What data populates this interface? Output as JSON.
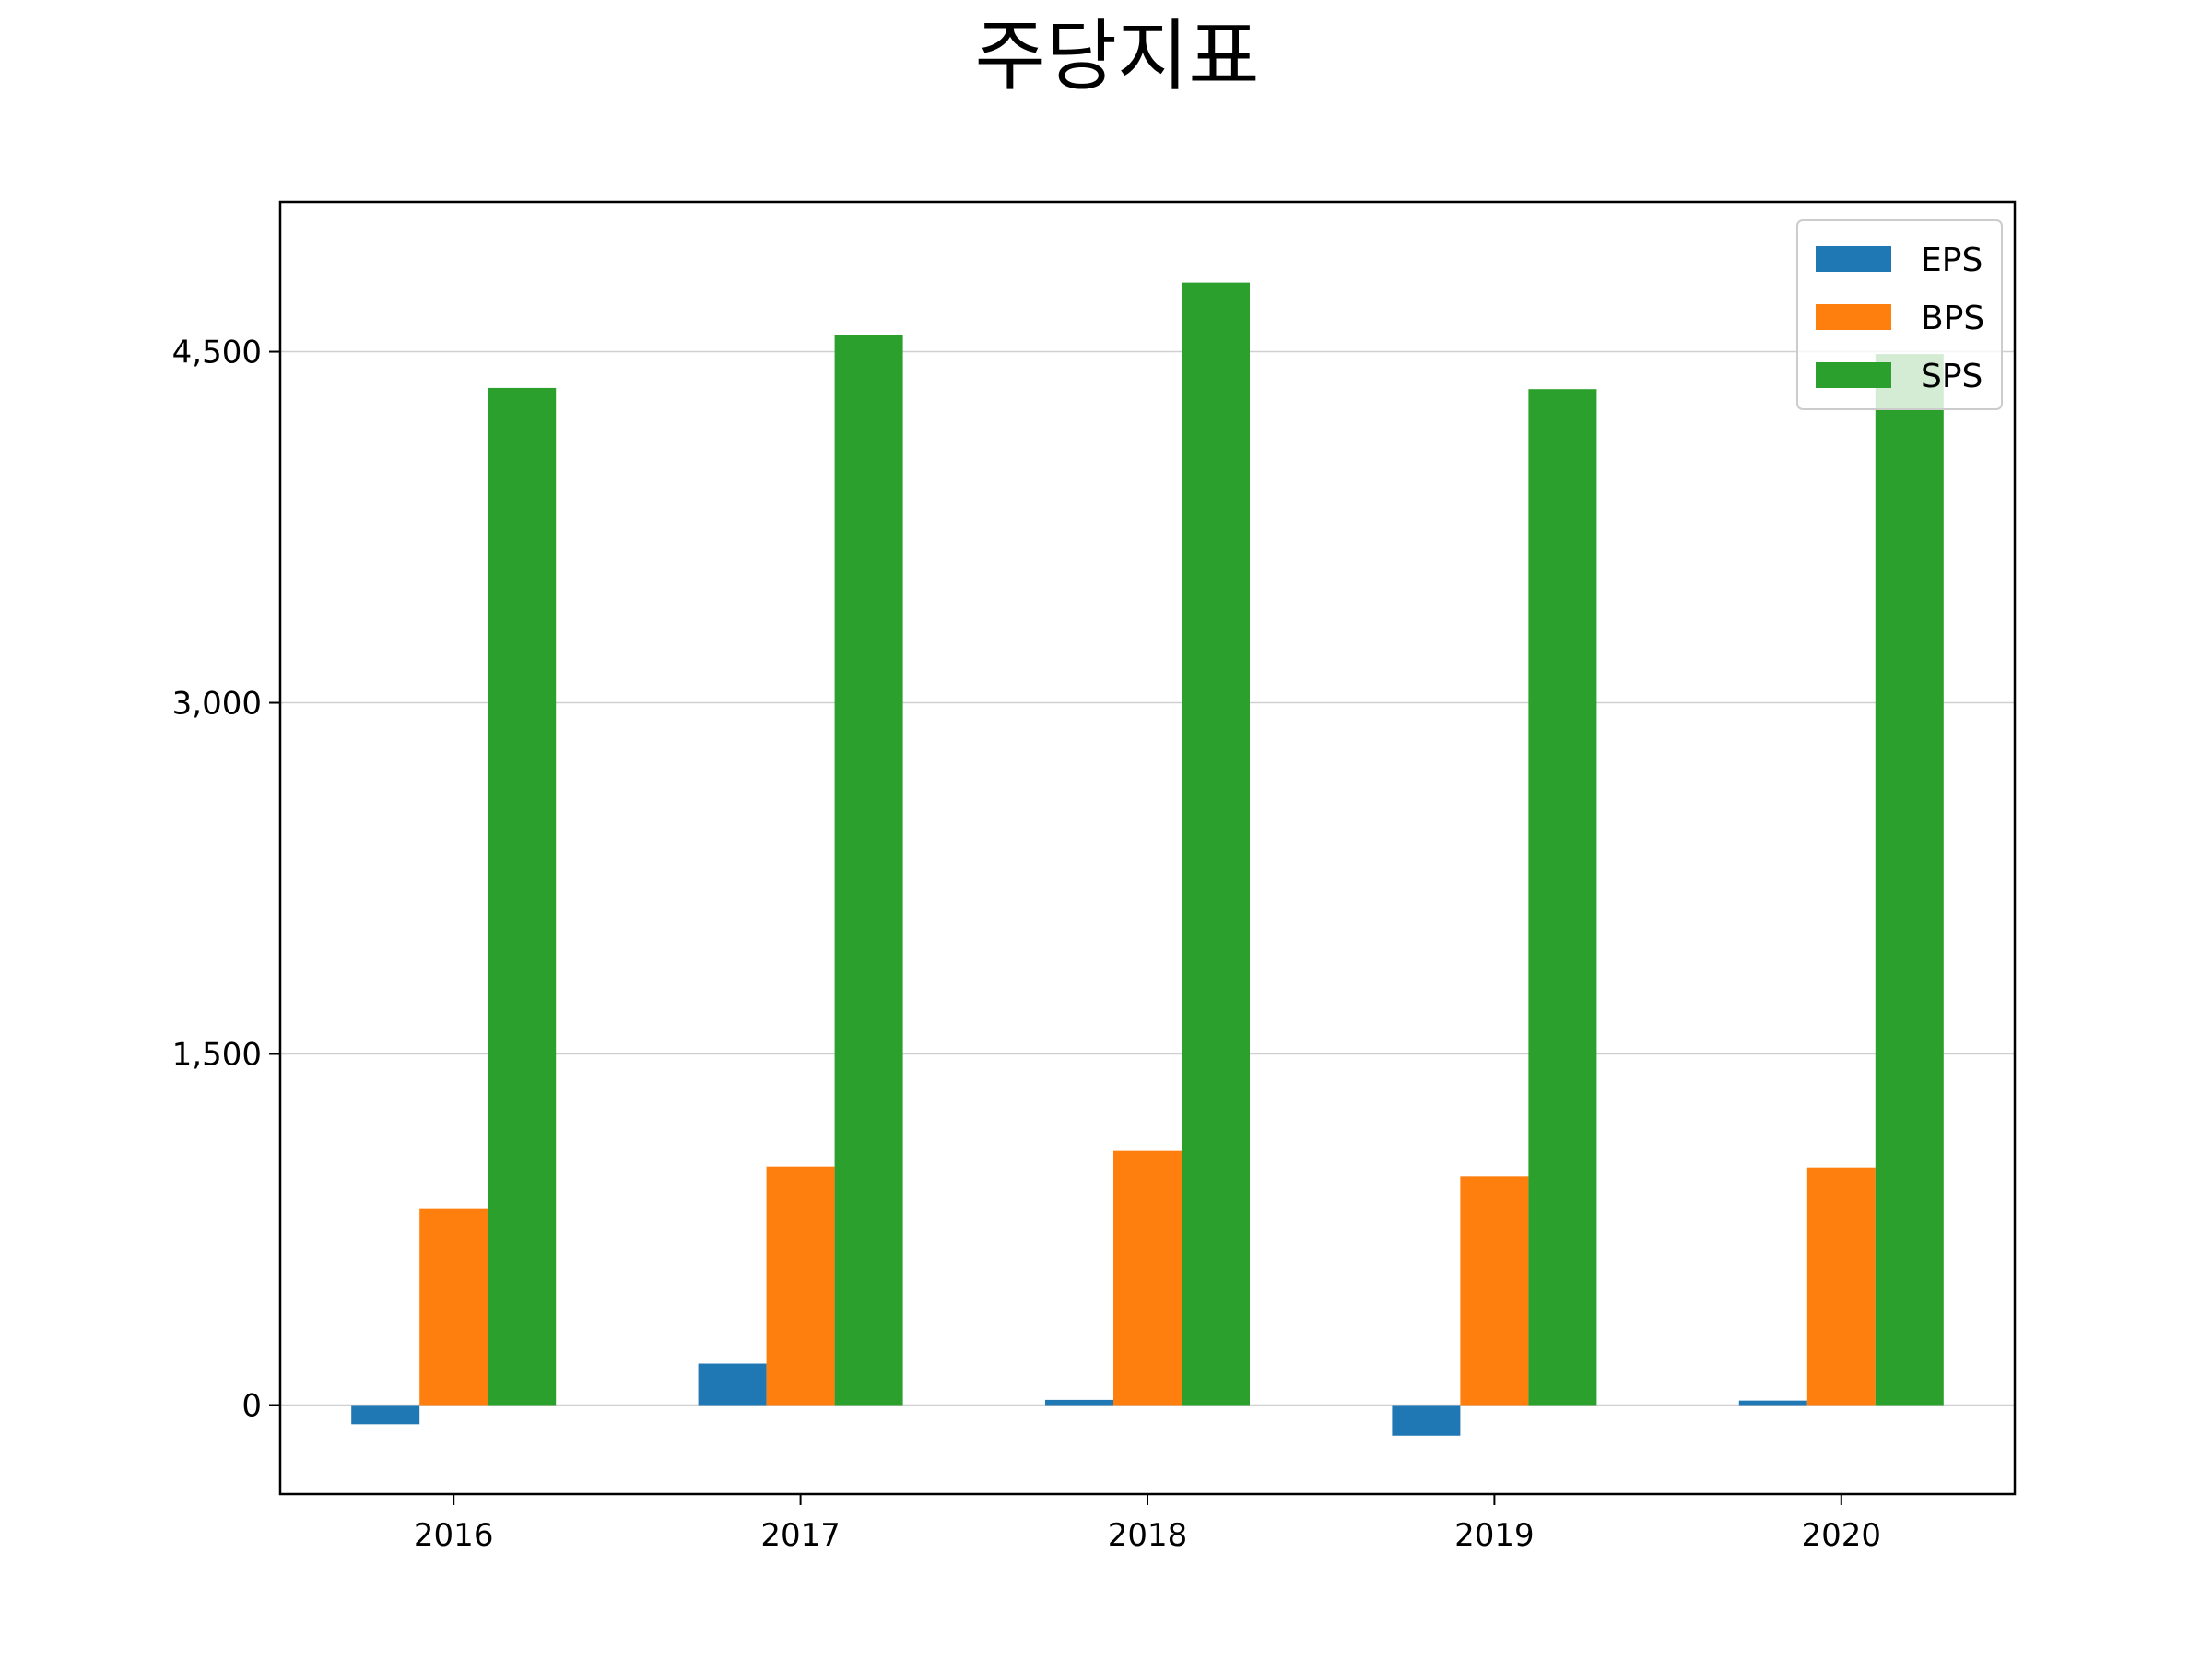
{
  "chart_data": {
    "type": "bar",
    "title": "주당지표",
    "xlabel": "",
    "ylabel": "",
    "categories": [
      "2016",
      "2017",
      "2018",
      "2019",
      "2020"
    ],
    "series": [
      {
        "name": "EPS",
        "color": "#1f77b4",
        "values": [
          -82,
          177,
          22,
          -131,
          19
        ]
      },
      {
        "name": "BPS",
        "color": "#ff7f0e",
        "values": [
          838,
          1019,
          1086,
          977,
          1015
        ]
      },
      {
        "name": "SPS",
        "color": "#2ca02c",
        "values": [
          4345,
          4570,
          4795,
          4340,
          4490
        ]
      }
    ],
    "yticks": [
      0,
      1500,
      3000,
      4500
    ],
    "ytick_labels": [
      "0",
      "1,500",
      "3,000",
      "4,500"
    ],
    "ylim": [
      -380,
      5140
    ],
    "grid": "y",
    "legend_position": "top-right"
  }
}
